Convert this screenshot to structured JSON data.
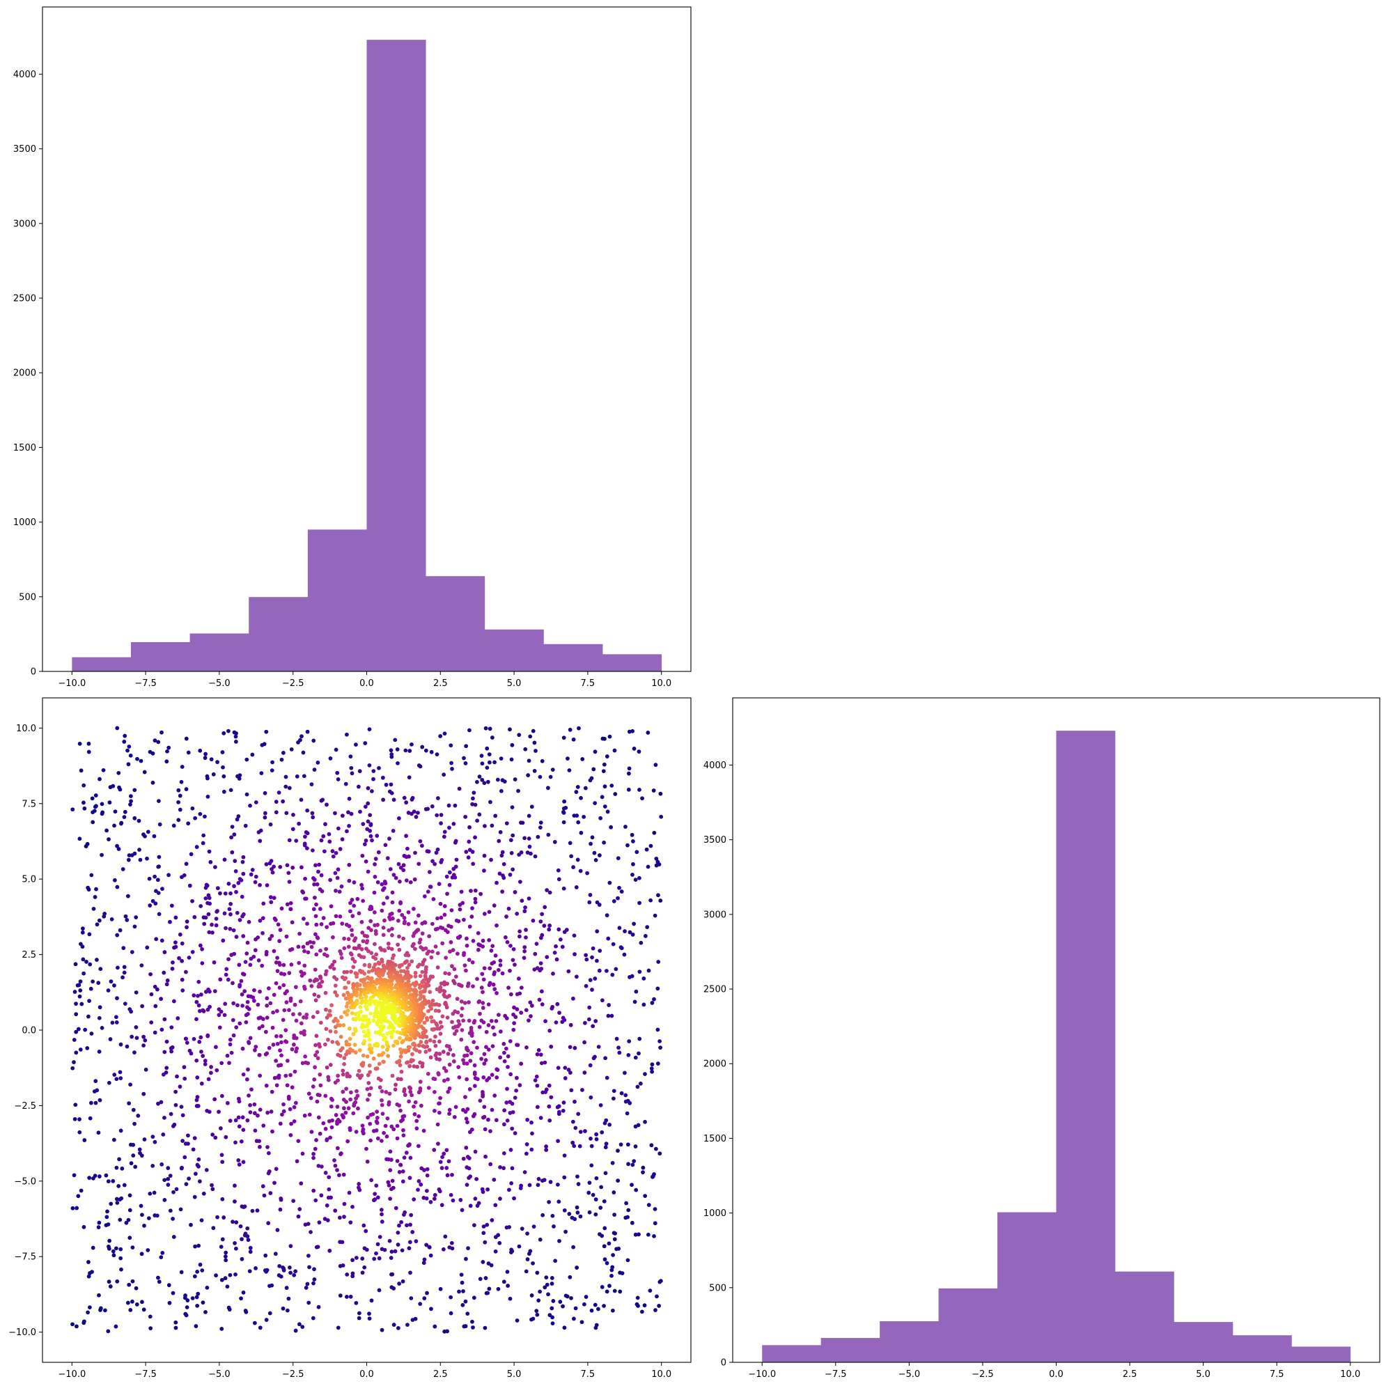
{
  "chart_data": [
    {
      "type": "bar",
      "subplot": "top-left",
      "bar_color": "#9467bd",
      "bin_edges": [
        -10,
        -8,
        -6,
        -4,
        -2,
        0,
        2,
        4,
        6,
        8,
        10
      ],
      "values": [
        95,
        196,
        254,
        498,
        950,
        4230,
        638,
        281,
        183,
        115
      ],
      "xlim": [
        -11,
        11
      ],
      "ylim": [
        0,
        4450
      ],
      "xticks": [
        -10.0,
        -7.5,
        -5.0,
        -2.5,
        0.0,
        2.5,
        5.0,
        7.5,
        10.0
      ],
      "xtick_labels": [
        "−10.0",
        "−7.5",
        "−5.0",
        "−2.5",
        "0.0",
        "2.5",
        "5.0",
        "7.5",
        "10.0"
      ],
      "yticks": [
        0,
        500,
        1000,
        1500,
        2000,
        2500,
        3000,
        3500,
        4000
      ],
      "ytick_labels": [
        "0",
        "500",
        "1000",
        "1500",
        "2000",
        "2500",
        "3000",
        "3500",
        "4000"
      ]
    },
    {
      "type": "scatter",
      "subplot": "bottom-left",
      "colormap": "plasma",
      "color_encodes": "point density",
      "n_points": 3700,
      "description_of_distribution": "dense core centred near (0.3, 0.5) extending up to ~2.3 and down to ~-0.5 in y; broad sparse scatter uniformly filling [-10, 10] x [-10, 10]",
      "xlim": [
        -11,
        11
      ],
      "ylim": [
        -11,
        11
      ],
      "xticks": [
        -10.0,
        -7.5,
        -5.0,
        -2.5,
        0.0,
        2.5,
        5.0,
        7.5,
        10.0
      ],
      "xtick_labels": [
        "−10.0",
        "−7.5",
        "−5.0",
        "−2.5",
        "0.0",
        "2.5",
        "5.0",
        "7.5",
        "10.0"
      ],
      "yticks": [
        -10.0,
        -7.5,
        -5.0,
        -2.5,
        0.0,
        2.5,
        5.0,
        7.5,
        10.0
      ],
      "ytick_labels": [
        "−10.0",
        "−7.5",
        "−5.0",
        "−2.5",
        "0.0",
        "2.5",
        "5.0",
        "7.5",
        "10.0"
      ]
    },
    {
      "type": "bar",
      "subplot": "bottom-right",
      "bar_color": "#9467bd",
      "bin_edges": [
        -10,
        -8,
        -6,
        -4,
        -2,
        0,
        2,
        4,
        6,
        8,
        10
      ],
      "values": [
        115,
        163,
        275,
        495,
        1005,
        4230,
        608,
        270,
        181,
        105
      ],
      "xlim": [
        -11,
        11
      ],
      "ylim": [
        0,
        4450
      ],
      "xticks": [
        -10.0,
        -7.5,
        -5.0,
        -2.5,
        0.0,
        2.5,
        5.0,
        7.5,
        10.0
      ],
      "xtick_labels": [
        "−10.0",
        "−7.5",
        "−5.0",
        "−2.5",
        "0.0",
        "2.5",
        "5.0",
        "7.5",
        "10.0"
      ],
      "yticks": [
        0,
        500,
        1000,
        1500,
        2000,
        2500,
        3000,
        3500,
        4000
      ],
      "ytick_labels": [
        "0",
        "500",
        "1000",
        "1500",
        "2000",
        "2500",
        "3000",
        "3500",
        "4000"
      ]
    }
  ]
}
